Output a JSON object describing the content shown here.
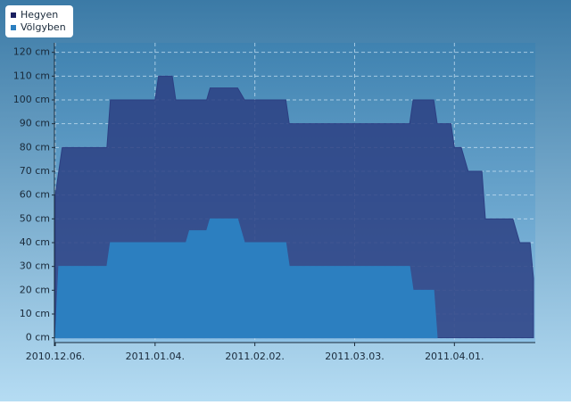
{
  "chart_data": {
    "type": "area",
    "x": [
      "2010-12-06",
      "2010-12-07",
      "2010-12-08",
      "2010-12-21",
      "2010-12-22",
      "2011-01-04",
      "2011-01-05",
      "2011-01-09",
      "2011-01-10",
      "2011-01-13",
      "2011-01-14",
      "2011-01-19",
      "2011-01-20",
      "2011-01-28",
      "2011-01-30",
      "2011-02-11",
      "2011-02-12",
      "2011-03-19",
      "2011-03-20",
      "2011-03-26",
      "2011-03-27",
      "2011-03-31",
      "2011-04-01",
      "2011-04-03",
      "2011-04-05",
      "2011-04-09",
      "2011-04-10",
      "2011-04-18",
      "2011-04-20",
      "2011-04-23",
      "2011-04-24"
    ],
    "series": [
      {
        "name": "Hegyen",
        "color": "#2c3f82",
        "values": [
          60,
          70,
          80,
          80,
          100,
          100,
          110,
          110,
          100,
          100,
          100,
          100,
          105,
          105,
          100,
          100,
          90,
          90,
          100,
          100,
          90,
          90,
          80,
          80,
          70,
          70,
          50,
          50,
          40,
          40,
          25
        ]
      },
      {
        "name": "Völgyben",
        "color": "#2c7fc0",
        "values": [
          0,
          30,
          30,
          30,
          40,
          40,
          40,
          40,
          40,
          40,
          45,
          45,
          50,
          50,
          40,
          40,
          30,
          30,
          20,
          20,
          0,
          null,
          null,
          null,
          null,
          null,
          null,
          null,
          null,
          null,
          null
        ]
      }
    ],
    "xlim": [
      "2010-12-06",
      "2011-04-24"
    ],
    "xticks": [
      {
        "value": "2010-12-06",
        "label": "2010.12.06."
      },
      {
        "value": "2011-01-04",
        "label": "2011.01.04."
      },
      {
        "value": "2011-02-02",
        "label": "2011.02.02."
      },
      {
        "value": "2011-03-03",
        "label": "2011.03.03."
      },
      {
        "value": "2011-04-01",
        "label": "2011.04.01."
      }
    ],
    "ylim": [
      -2,
      124
    ],
    "yticks": [
      {
        "value": 0,
        "label": "0 cm"
      },
      {
        "value": 10,
        "label": "10 cm"
      },
      {
        "value": 20,
        "label": "20 cm"
      },
      {
        "value": 30,
        "label": "30 cm"
      },
      {
        "value": 40,
        "label": "40 cm"
      },
      {
        "value": 50,
        "label": "50 cm"
      },
      {
        "value": 60,
        "label": "60 cm"
      },
      {
        "value": 70,
        "label": "70 cm"
      },
      {
        "value": 80,
        "label": "80 cm"
      },
      {
        "value": 90,
        "label": "90 cm"
      },
      {
        "value": 100,
        "label": "100 cm"
      },
      {
        "value": 110,
        "label": "110 cm"
      },
      {
        "value": 120,
        "label": "120 cm"
      }
    ],
    "grid": true
  }
}
